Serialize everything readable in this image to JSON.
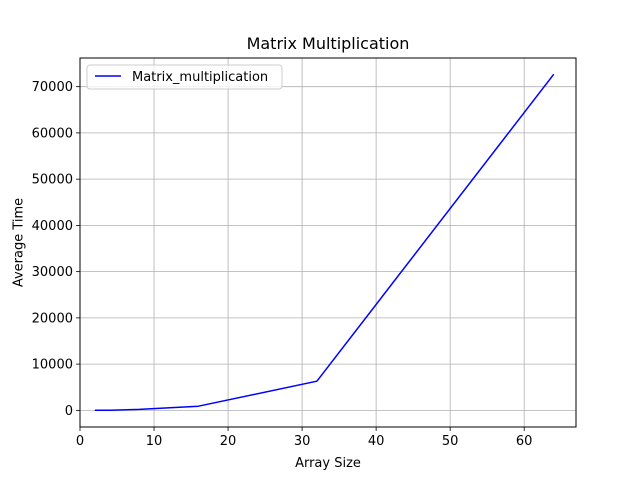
{
  "chart_data": {
    "type": "line",
    "title": "Matrix Multiplication",
    "xlabel": "Array Size",
    "ylabel": "Average Time",
    "xlim": [
      0,
      67
    ],
    "ylim": [
      -3600,
      76200
    ],
    "xticks": [
      0,
      10,
      20,
      30,
      40,
      50,
      60
    ],
    "yticks": [
      0,
      10000,
      20000,
      30000,
      40000,
      50000,
      60000,
      70000
    ],
    "grid": true,
    "legend_position": "top-left",
    "series": [
      {
        "name": "Matrix_multiplication",
        "color": "#0000ff",
        "x": [
          2,
          4,
          8,
          16,
          32,
          64
        ],
        "y": [
          10,
          40,
          200,
          900,
          6300,
          72700
        ]
      }
    ]
  }
}
